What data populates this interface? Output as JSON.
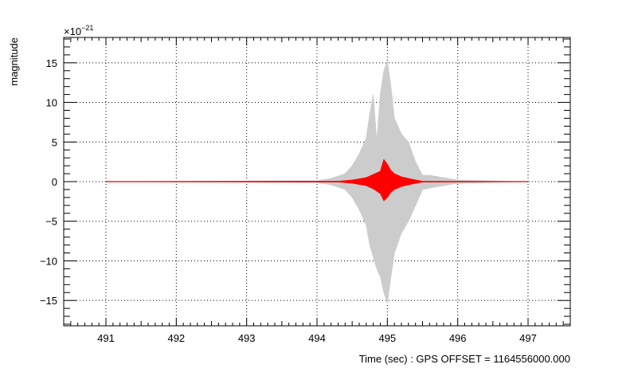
{
  "chart_data": {
    "type": "line",
    "xlabel": "Time (sec) : GPS OFFSET = 1164556000.000",
    "ylabel": "magnitude",
    "exponent_label": "×10",
    "exponent_power": "−21",
    "xlim": [
      490.4,
      497.6
    ],
    "ylim": [
      -18.2,
      18.2
    ],
    "x_ticks": [
      491,
      492,
      493,
      494,
      495,
      496,
      497
    ],
    "x_tick_labels": [
      "491",
      "492",
      "493",
      "494",
      "495",
      "496",
      "497"
    ],
    "y_ticks": [
      -15,
      -10,
      -5,
      0,
      5,
      10,
      15
    ],
    "y_tick_labels": [
      "−15",
      "−10",
      "−5",
      "0",
      "5",
      "10",
      "15"
    ],
    "grid": true,
    "series": [
      {
        "color": "#cccccc",
        "envelope": {
          "x": [
            491.0,
            494.0,
            494.2,
            494.4,
            494.5,
            494.6,
            494.7,
            494.75,
            494.8,
            494.85,
            494.9,
            494.95,
            495.0,
            495.05,
            495.1,
            495.2,
            495.3,
            495.4,
            495.5,
            495.6,
            495.8,
            496.0,
            497.0
          ],
          "upper": [
            0.0,
            0.1,
            0.4,
            1.0,
            2.0,
            3.5,
            5.5,
            8.5,
            11.0,
            5.0,
            11.0,
            14.0,
            15.2,
            12.0,
            8.0,
            6.0,
            5.0,
            2.5,
            0.8,
            0.8,
            0.5,
            0.2,
            0.0
          ],
          "lower": [
            0.0,
            -0.1,
            -0.4,
            -1.0,
            -2.0,
            -3.5,
            -5.5,
            -8.0,
            -9.5,
            -11.0,
            -12.0,
            -14.0,
            -15.3,
            -12.0,
            -9.0,
            -6.5,
            -5.0,
            -3.0,
            -1.0,
            -0.8,
            -0.5,
            -0.2,
            0.0
          ]
        }
      },
      {
        "color": "#ff0000",
        "envelope": {
          "x": [
            491.0,
            494.3,
            494.5,
            494.7,
            494.8,
            494.9,
            494.95,
            495.0,
            495.05,
            495.1,
            495.2,
            495.35,
            495.5,
            497.0
          ],
          "upper": [
            0.0,
            0.05,
            0.2,
            0.5,
            0.9,
            1.3,
            2.8,
            2.2,
            1.4,
            1.0,
            0.6,
            0.3,
            0.05,
            0.0
          ],
          "lower": [
            0.0,
            -0.05,
            -0.2,
            -0.5,
            -0.9,
            -1.5,
            -2.4,
            -2.0,
            -1.3,
            -1.0,
            -0.6,
            -0.3,
            -0.05,
            0.0
          ]
        }
      }
    ]
  }
}
